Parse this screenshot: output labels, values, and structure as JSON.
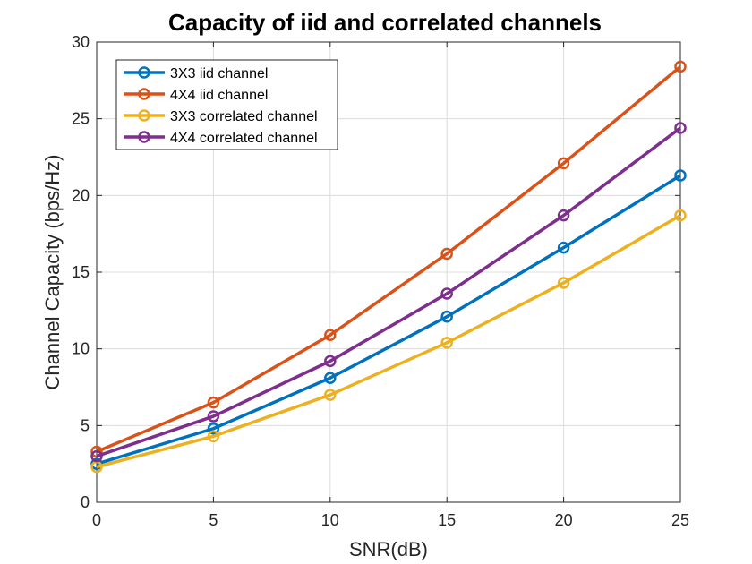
{
  "chart_data": {
    "type": "line",
    "title": "Capacity of iid and correlated channels",
    "xlabel": "SNR(dB)",
    "ylabel": "Channel Capacity (bps/Hz)",
    "x": [
      0,
      5,
      10,
      15,
      20,
      25
    ],
    "xlim": [
      0,
      25
    ],
    "ylim": [
      0,
      30
    ],
    "xticks": [
      0,
      5,
      10,
      15,
      20,
      25
    ],
    "yticks": [
      0,
      5,
      10,
      15,
      20,
      25,
      30
    ],
    "grid": true,
    "legend_position": "top-left",
    "series": [
      {
        "name": "3X3 iid channel",
        "color": "#0072BD",
        "values": [
          2.5,
          4.8,
          8.1,
          12.1,
          16.6,
          21.3
        ]
      },
      {
        "name": "4X4 iid channel",
        "color": "#D95319",
        "values": [
          3.3,
          6.5,
          10.9,
          16.2,
          22.1,
          28.4
        ]
      },
      {
        "name": "3X3 correlated channel",
        "color": "#EDB120",
        "values": [
          2.3,
          4.3,
          7.0,
          10.4,
          14.3,
          18.7
        ]
      },
      {
        "name": "4X4 correlated channel",
        "color": "#7E2F8E",
        "values": [
          3.0,
          5.6,
          9.2,
          13.6,
          18.7,
          24.4
        ]
      }
    ]
  }
}
